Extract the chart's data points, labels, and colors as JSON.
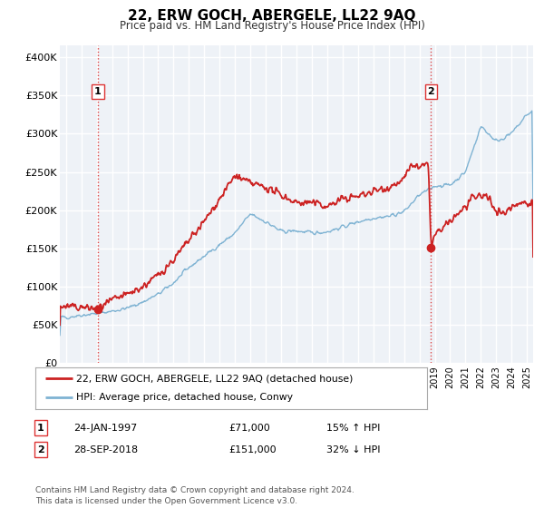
{
  "title": "22, ERW GOCH, ABERGELE, LL22 9AQ",
  "subtitle": "Price paid vs. HM Land Registry's House Price Index (HPI)",
  "ylabel_ticks": [
    "£0",
    "£50K",
    "£100K",
    "£150K",
    "£200K",
    "£250K",
    "£300K",
    "£350K",
    "£400K"
  ],
  "ytick_values": [
    0,
    50000,
    100000,
    150000,
    200000,
    250000,
    300000,
    350000,
    400000
  ],
  "ylim": [
    0,
    415000
  ],
  "xlim_start": 1994.6,
  "xlim_end": 2025.4,
  "marker1_x": 1997.07,
  "marker1_y": 71000,
  "marker1_label": "1",
  "marker1_date": "24-JAN-1997",
  "marker1_price": "£71,000",
  "marker1_hpi": "15% ↑ HPI",
  "marker2_x": 2018.75,
  "marker2_y": 151000,
  "marker2_label": "2",
  "marker2_date": "28-SEP-2018",
  "marker2_price": "£151,000",
  "marker2_hpi": "32% ↓ HPI",
  "legend_line1": "22, ERW GOCH, ABERGELE, LL22 9AQ (detached house)",
  "legend_line2": "HPI: Average price, detached house, Conwy",
  "footer": "Contains HM Land Registry data © Crown copyright and database right 2024.\nThis data is licensed under the Open Government Licence v3.0.",
  "hpi_color": "#7fb3d3",
  "price_color": "#cc2222",
  "plot_bg_color": "#eef2f7",
  "grid_color": "#ffffff",
  "vline_color": "#dd3333"
}
